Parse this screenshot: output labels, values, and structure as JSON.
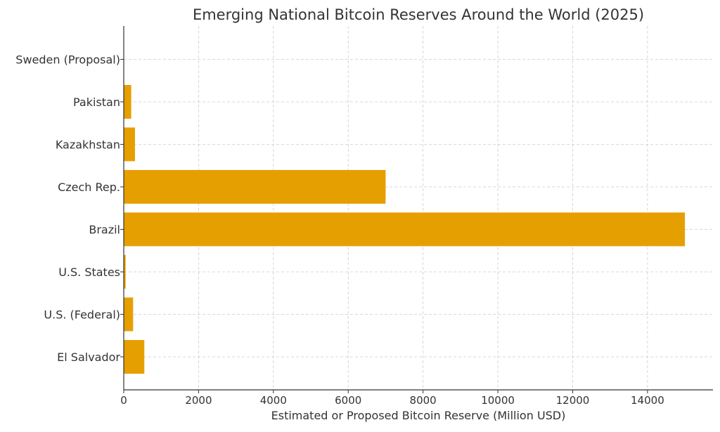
{
  "chart_data": {
    "type": "bar",
    "orientation": "horizontal",
    "title": "Emerging National Bitcoin Reserves Around the World (2025)",
    "xlabel": "Estimated or Proposed Bitcoin Reserve (Million USD)",
    "ylabel": "",
    "categories": [
      "El Salvador",
      "U.S. (Federal)",
      "U.S. States",
      "Brazil",
      "Czech Rep.",
      "Kazakhstan",
      "Pakistan",
      "Sweden (Proposal)"
    ],
    "values": [
      550,
      250,
      50,
      15000,
      7000,
      300,
      200,
      0
    ],
    "xlim": [
      0,
      15750
    ],
    "xticks": [
      0,
      2000,
      4000,
      6000,
      8000,
      10000,
      12000,
      14000
    ],
    "grid": true,
    "bar_color": "#E69F00"
  }
}
